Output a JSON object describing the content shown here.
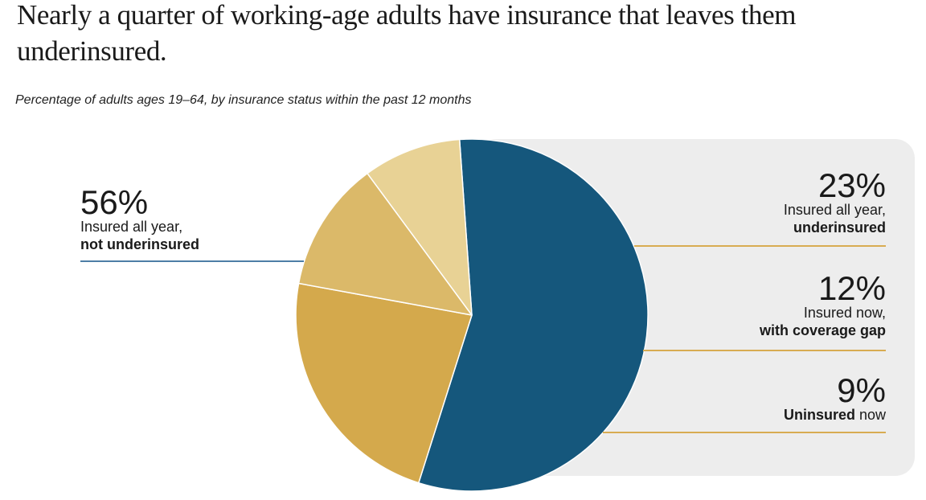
{
  "title": "Nearly a quarter of working-age adults have insurance that leaves them underinsured.",
  "title_lines": [
    "Nearly a quarter of working-age adults have insurance that leaves them",
    "underinsured."
  ],
  "subtitle": "Percentage of adults ages 19–64, by insurance status within the past 12 months",
  "colors": {
    "background": "#FFFFFF",
    "panel": "#EDEDED",
    "text": "#1A1A1A",
    "blue": "#15577C",
    "gold": "#D4A94C",
    "gold_medium": "#DBB969",
    "gold_pale": "#E8D295",
    "leader_blue": "#4D7EA6",
    "leader_gold": "#D8AC52"
  },
  "chart_data": {
    "type": "pie",
    "title": "Nearly a quarter of working-age adults have insurance that leaves them underinsured.",
    "subtitle": "Percentage of adults ages 19–64, by insurance status within the past 12 months",
    "unit": "%",
    "start_angle_deg": -4,
    "direction": "clockwise",
    "legend_position": "callouts",
    "slices": [
      {
        "id": "insured-all-year-not-underinsured",
        "label": "Insured all year, not underinsured",
        "value": 56,
        "display_value": "56%",
        "color": "#15577C",
        "leader_color": "#4D7EA6",
        "side": "left",
        "desc": [
          [
            {
              "t": "Insured all year,",
              "b": false
            }
          ],
          [
            {
              "t": "not underinsured",
              "b": true
            }
          ]
        ]
      },
      {
        "id": "insured-all-year-underinsured",
        "label": "Insured all year, underinsured",
        "value": 23,
        "display_value": "23%",
        "color": "#D4A94C",
        "leader_color": "#D8AC52",
        "side": "right",
        "desc": [
          [
            {
              "t": "Insured all year,",
              "b": false
            }
          ],
          [
            {
              "t": "underinsured",
              "b": true
            }
          ]
        ]
      },
      {
        "id": "insured-now-coverage-gap",
        "label": "Insured now, with coverage gap",
        "value": 12,
        "display_value": "12%",
        "color": "#DBB969",
        "leader_color": "#D8AC52",
        "side": "right",
        "desc": [
          [
            {
              "t": "Insured now,",
              "b": false
            }
          ],
          [
            {
              "t": "with coverage gap",
              "b": true
            }
          ]
        ]
      },
      {
        "id": "uninsured-now",
        "label": "Uninsured now",
        "value": 9,
        "display_value": "9%",
        "color": "#E8D295",
        "leader_color": "#D8AC52",
        "side": "right",
        "desc": [
          [
            {
              "t": "Uninsured",
              "b": true
            },
            {
              "t": " now",
              "b": false
            }
          ]
        ]
      }
    ]
  }
}
